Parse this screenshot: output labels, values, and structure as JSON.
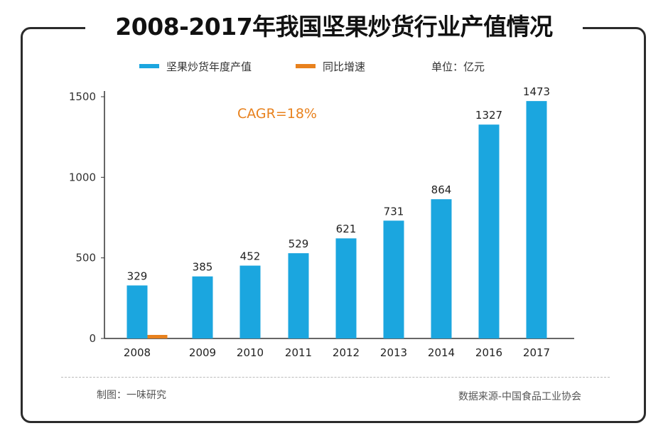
{
  "page_title": "2008-2017年我国坚果炒货行业产值情况",
  "unit_label": "单位：亿元",
  "footer": {
    "left": "制图：一味研究",
    "right": "数据来源-中国食品工业协会"
  },
  "colors": {
    "bar": "#1ba6df",
    "growth": "#e8811d",
    "annotation": "#e8811d",
    "axis": "#333333"
  },
  "chart_data": {
    "type": "bar",
    "title": "",
    "xlabel": "",
    "ylabel": "",
    "categories": [
      "2008",
      "2009",
      "2010",
      "2011",
      "2012",
      "2013",
      "2014",
      "2016",
      "2017"
    ],
    "series": [
      {
        "name": "坚果炒货年度产值",
        "type": "bar",
        "values": [
          329,
          385,
          452,
          529,
          621,
          731,
          864,
          1327,
          1473
        ]
      },
      {
        "name": "同比增速",
        "type": "line",
        "values": [
          null,
          null,
          null,
          null,
          null,
          null,
          null,
          null,
          null
        ]
      }
    ],
    "data_labels": [
      "329",
      "385",
      "452",
      "529",
      "621",
      "731",
      "864",
      "1327",
      "1473"
    ],
    "yticks": [
      0,
      500,
      1000,
      1500
    ],
    "ytick_labels": [
      "0",
      "500",
      "1000",
      "1500"
    ],
    "ylim": [
      0,
      1500
    ],
    "grid": false,
    "legend_position": "top",
    "annotation": "CAGR=18%"
  }
}
